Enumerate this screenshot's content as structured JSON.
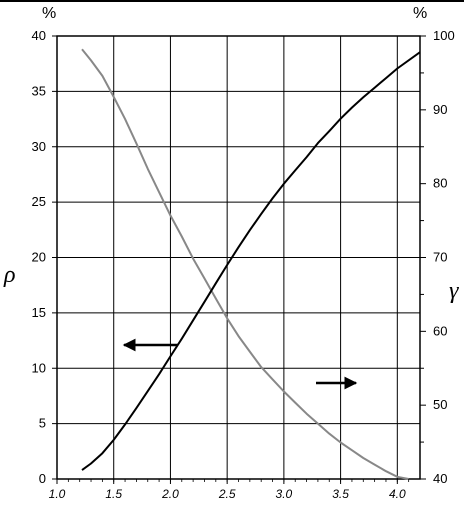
{
  "chart_data": {
    "type": "line",
    "x_ticks": [
      "1.0",
      "1.5",
      "2.0",
      "2.5",
      "3.0",
      "3.5",
      "4.0"
    ],
    "xlim": [
      1.0,
      4.2
    ],
    "left_axis": {
      "symbol": "ρ",
      "unit": "%",
      "ylim": [
        0,
        40
      ],
      "ticks": [
        "0",
        "5",
        "10",
        "15",
        "20",
        "25",
        "30",
        "35",
        "40"
      ]
    },
    "right_axis": {
      "symbol": "γ",
      "unit": "%",
      "ylim": [
        40,
        100
      ],
      "ticks": [
        "40",
        "50",
        "60",
        "70",
        "80",
        "90",
        "100"
      ]
    },
    "grid": true,
    "series": [
      {
        "axis": "left",
        "color": "#888888",
        "points": [
          [
            1.22,
            38.8
          ],
          [
            1.3,
            37.8
          ],
          [
            1.4,
            36.4
          ],
          [
            1.5,
            34.5
          ],
          [
            1.6,
            32.5
          ],
          [
            1.7,
            30.3
          ],
          [
            1.8,
            28.0
          ],
          [
            1.9,
            25.9
          ],
          [
            2.0,
            23.8
          ],
          [
            2.1,
            21.9
          ],
          [
            2.2,
            19.9
          ],
          [
            2.3,
            18.1
          ],
          [
            2.4,
            16.3
          ],
          [
            2.5,
            14.5
          ],
          [
            2.6,
            12.9
          ],
          [
            2.7,
            11.5
          ],
          [
            2.8,
            10.1
          ],
          [
            2.9,
            9.0
          ],
          [
            3.0,
            7.9
          ],
          [
            3.1,
            6.9
          ],
          [
            3.2,
            5.9
          ],
          [
            3.3,
            5.0
          ],
          [
            3.4,
            4.1
          ],
          [
            3.5,
            3.3
          ],
          [
            3.6,
            2.6
          ],
          [
            3.7,
            1.9
          ],
          [
            3.8,
            1.3
          ],
          [
            3.9,
            0.7
          ],
          [
            4.0,
            0.2
          ],
          [
            4.1,
            0.0
          ]
        ]
      },
      {
        "axis": "right",
        "color": "#000000",
        "points": [
          [
            1.22,
            41.2
          ],
          [
            1.3,
            42.1
          ],
          [
            1.4,
            43.5
          ],
          [
            1.5,
            45.3
          ],
          [
            1.6,
            47.4
          ],
          [
            1.7,
            49.6
          ],
          [
            1.8,
            51.9
          ],
          [
            1.9,
            54.2
          ],
          [
            2.0,
            56.6
          ],
          [
            2.1,
            59.0
          ],
          [
            2.2,
            61.5
          ],
          [
            2.3,
            64.0
          ],
          [
            2.4,
            66.5
          ],
          [
            2.5,
            69.0
          ],
          [
            2.6,
            71.4
          ],
          [
            2.7,
            73.7
          ],
          [
            2.8,
            75.9
          ],
          [
            2.9,
            78.0
          ],
          [
            3.0,
            80.0
          ],
          [
            3.1,
            81.8
          ],
          [
            3.2,
            83.6
          ],
          [
            3.3,
            85.5
          ],
          [
            3.4,
            87.1
          ],
          [
            3.5,
            88.8
          ],
          [
            3.6,
            90.3
          ],
          [
            3.7,
            91.7
          ],
          [
            3.8,
            93.0
          ],
          [
            3.9,
            94.3
          ],
          [
            4.0,
            95.6
          ],
          [
            4.2,
            97.8
          ]
        ]
      }
    ]
  }
}
